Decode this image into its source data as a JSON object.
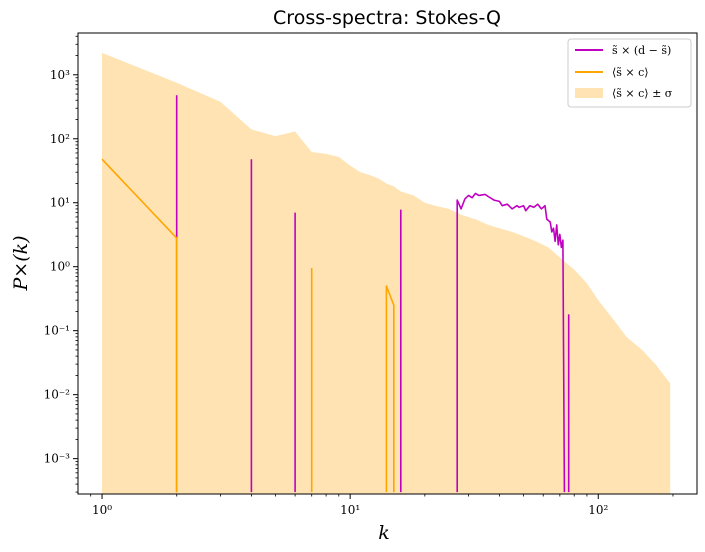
{
  "chart_data": {
    "type": "line",
    "title": "Cross-spectra: Stokes-Q",
    "xlabel": "k",
    "ylabel": "P×(k)",
    "xscale": "log",
    "yscale": "log",
    "xlim": [
      0.8,
      250
    ],
    "ylim": [
      0.00028,
      4500
    ],
    "grid": false,
    "legend_position": "top-right",
    "x_ticks": [
      {
        "value": 1,
        "label": "10⁰"
      },
      {
        "value": 10,
        "label": "10¹"
      },
      {
        "value": 100,
        "label": "10²"
      }
    ],
    "y_ticks": [
      {
        "value": 0.001,
        "label": "10⁻³"
      },
      {
        "value": 0.01,
        "label": "10⁻²"
      },
      {
        "value": 0.1,
        "label": "10⁻¹"
      },
      {
        "value": 1,
        "label": "10⁰"
      },
      {
        "value": 10,
        "label": "10¹"
      },
      {
        "value": 100,
        "label": "10²"
      },
      {
        "value": 1000,
        "label": "10³"
      }
    ],
    "series": [
      {
        "name": "s̃ × (d − s̃)",
        "kind": "line",
        "color": "#c000c0",
        "segments": [
          [
            [
              2,
              0.0003
            ],
            [
              2,
              480
            ]
          ],
          [
            [
              4,
              0.0003
            ],
            [
              4,
              48
            ]
          ],
          [
            [
              6,
              0.0003
            ],
            [
              6,
              7
            ]
          ],
          [
            [
              16,
              0.0003
            ],
            [
              16,
              7.8
            ]
          ],
          [
            [
              27,
              0.0003
            ],
            [
              27,
              11
            ],
            [
              28,
              8
            ],
            [
              29,
              11.5
            ],
            [
              30,
              13
            ],
            [
              31,
              12
            ],
            [
              32,
              14
            ],
            [
              33,
              13
            ],
            [
              35,
              13.5
            ],
            [
              36,
              12.5
            ],
            [
              38,
              11
            ],
            [
              40,
              10.5
            ],
            [
              41,
              9
            ],
            [
              43,
              9.5
            ],
            [
              45,
              8
            ],
            [
              47,
              9
            ],
            [
              48,
              8.5
            ],
            [
              50,
              9
            ],
            [
              51,
              7.5
            ],
            [
              53,
              9
            ],
            [
              55,
              8.5
            ],
            [
              57,
              9.5
            ],
            [
              59,
              8
            ],
            [
              61,
              9
            ],
            [
              62,
              5.5
            ],
            [
              64,
              5
            ],
            [
              65,
              3.5
            ],
            [
              66,
              4
            ],
            [
              67,
              2.5
            ],
            [
              68,
              4.5
            ],
            [
              69,
              2.2
            ],
            [
              70,
              3.2
            ],
            [
              71,
              2
            ],
            [
              72,
              2.6
            ],
            [
              73,
              0.0003
            ]
          ],
          [
            [
              76,
              0.0003
            ],
            [
              76,
              0.18
            ]
          ]
        ]
      },
      {
        "name": "⟨s̃ × c⟩",
        "kind": "line",
        "color": "#ffa500",
        "segments": [
          [
            [
              1,
              48
            ],
            [
              2,
              2.8
            ],
            [
              2,
              0.0003
            ]
          ],
          [
            [
              7,
              0.0003
            ],
            [
              7,
              0.95
            ]
          ],
          [
            [
              14,
              0.0003
            ],
            [
              14,
              0.5
            ],
            [
              15,
              0.25
            ],
            [
              15,
              0.0003
            ]
          ]
        ]
      },
      {
        "name": "⟨s̃ × c⟩ ± σ",
        "kind": "band",
        "color": "#ffe3b3",
        "upper": [
          [
            1,
            2200
          ],
          [
            2,
            750
          ],
          [
            3,
            380
          ],
          [
            4,
            140
          ],
          [
            5,
            110
          ],
          [
            6,
            130
          ],
          [
            7,
            62
          ],
          [
            8,
            58
          ],
          [
            9,
            52
          ],
          [
            10,
            38
          ],
          [
            11,
            30
          ],
          [
            12,
            27
          ],
          [
            13,
            24
          ],
          [
            14,
            20
          ],
          [
            15,
            18
          ],
          [
            16,
            15
          ],
          [
            18,
            13
          ],
          [
            20,
            10
          ],
          [
            22,
            9
          ],
          [
            25,
            8
          ],
          [
            28,
            6.5
          ],
          [
            32,
            5.5
          ],
          [
            36,
            4.5
          ],
          [
            40,
            4
          ],
          [
            45,
            3.5
          ],
          [
            50,
            3
          ],
          [
            56,
            2.5
          ],
          [
            63,
            2
          ],
          [
            70,
            1.4
          ],
          [
            80,
            0.9
          ],
          [
            90,
            0.55
          ],
          [
            100,
            0.3
          ],
          [
            115,
            0.15
          ],
          [
            130,
            0.08
          ],
          [
            150,
            0.05
          ],
          [
            170,
            0.03
          ],
          [
            195,
            0.015
          ]
        ]
      }
    ]
  }
}
